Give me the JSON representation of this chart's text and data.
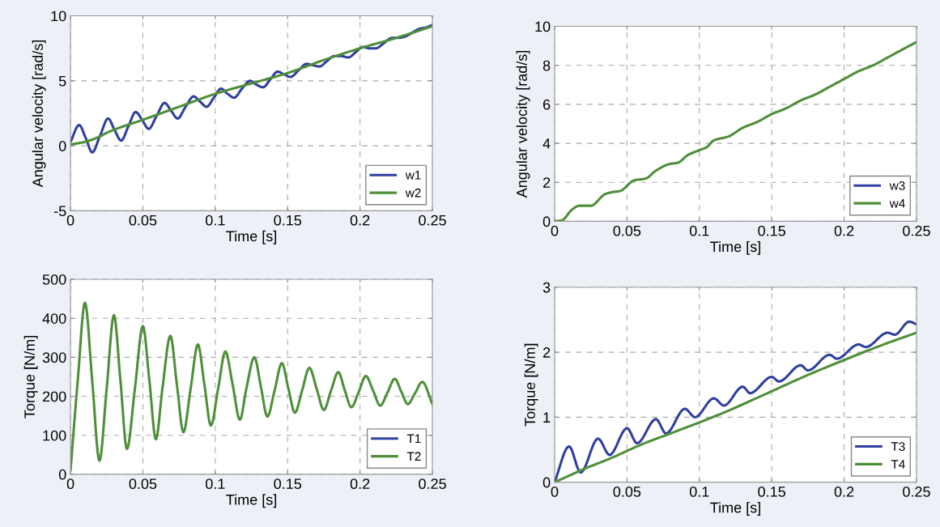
{
  "chart_data": [
    {
      "type": "line",
      "xlabel": "Time [s]",
      "ylabel": "Angular velocity [rad/s]",
      "xlim": [
        0,
        0.25
      ],
      "ylim": [
        -5,
        10
      ],
      "xticks": [
        0,
        0.05,
        0.1,
        0.15,
        0.2,
        0.25
      ],
      "yticks": [
        -5,
        0,
        5,
        10
      ],
      "grid": true,
      "legend": "bottom right",
      "series": [
        {
          "name": "w1",
          "color": "#2f3f9f",
          "x": [
            0,
            0.006,
            0.0105,
            0.015,
            0.0205,
            0.026,
            0.0305,
            0.035,
            0.04,
            0.045,
            0.0495,
            0.054,
            0.0595,
            0.065,
            0.0695,
            0.074,
            0.0795,
            0.085,
            0.0895,
            0.094,
            0.099,
            0.104,
            0.1085,
            0.113,
            0.1185,
            0.124,
            0.1285,
            0.133,
            0.138,
            0.143,
            0.1475,
            0.152,
            0.1575,
            0.163,
            0.1675,
            0.172,
            0.177,
            0.182,
            0.187,
            0.192,
            0.197,
            0.202,
            0.2065,
            0.211,
            0.2165,
            0.222,
            0.2265,
            0.231,
            0.236,
            0.241,
            0.2455,
            0.25
          ],
          "values": [
            0.3,
            1.6,
            0.6,
            -0.5,
            0.8,
            2.1,
            1.2,
            0.4,
            1.5,
            2.6,
            2.0,
            1.3,
            2.3,
            3.3,
            2.7,
            2.1,
            3.0,
            3.8,
            3.4,
            3.0,
            3.7,
            4.4,
            4.0,
            3.7,
            4.4,
            5.0,
            4.7,
            4.5,
            5.1,
            5.7,
            5.5,
            5.3,
            5.8,
            6.3,
            6.2,
            6.1,
            6.5,
            6.9,
            6.9,
            6.8,
            7.2,
            7.6,
            7.5,
            7.5,
            7.9,
            8.3,
            8.3,
            8.4,
            8.7,
            9.0,
            9.1,
            9.3
          ]
        },
        {
          "name": "w2",
          "color": "#4e8f3a",
          "x": [
            0,
            0.01,
            0.02,
            0.025,
            0.05,
            0.075,
            0.1,
            0.125,
            0.15,
            0.175,
            0.2,
            0.225,
            0.25
          ],
          "values": [
            0.1,
            0.3,
            0.7,
            1.0,
            2.0,
            3.0,
            4.0,
            4.8,
            5.6,
            6.6,
            7.5,
            8.3,
            9.2
          ]
        }
      ]
    },
    {
      "type": "line",
      "xlabel": "Time [s]",
      "ylabel": "Angular velocity [rad/s]",
      "xlim": [
        0,
        0.25
      ],
      "ylim": [
        0,
        10
      ],
      "xticks": [
        0,
        0.05,
        0.1,
        0.15,
        0.2,
        0.25
      ],
      "yticks": [
        0,
        2,
        4,
        6,
        8,
        10
      ],
      "grid": true,
      "legend": "bottom right",
      "series": [
        {
          "name": "w3",
          "color": "#2f3f9f"
        },
        {
          "name": "w4",
          "color": "#4e8f3a",
          "x": [
            0,
            0.005,
            0.012,
            0.017,
            0.025,
            0.035,
            0.04,
            0.045,
            0.055,
            0.063,
            0.07,
            0.08,
            0.085,
            0.092,
            0.1,
            0.105,
            0.11,
            0.12,
            0.13,
            0.14,
            0.15,
            0.16,
            0.17,
            0.18,
            0.19,
            0.2,
            0.21,
            0.22,
            0.23,
            0.24,
            0.25
          ],
          "values": [
            0,
            0.05,
            0.6,
            0.8,
            0.8,
            1.4,
            1.5,
            1.55,
            2.1,
            2.2,
            2.6,
            2.95,
            3.0,
            3.4,
            3.65,
            3.8,
            4.15,
            4.35,
            4.8,
            5.1,
            5.5,
            5.8,
            6.2,
            6.5,
            6.9,
            7.3,
            7.7,
            8.0,
            8.4,
            8.8,
            9.2
          ]
        }
      ]
    },
    {
      "type": "line",
      "xlabel": "Time [s]",
      "ylabel": "Torque [N/m]",
      "xlim": [
        0,
        0.25
      ],
      "ylim": [
        0,
        500
      ],
      "xticks": [
        0,
        0.05,
        0.1,
        0.15,
        0.2,
        0.25
      ],
      "yticks": [
        0,
        100,
        200,
        300,
        400,
        500
      ],
      "grid": true,
      "legend": "bottom right",
      "series": [
        {
          "name": "T1",
          "color": "#2f3f9f"
        },
        {
          "name": "T2",
          "color": "#4e8f3a",
          "x": [
            0,
            0.005,
            0.01,
            0.015,
            0.02,
            0.025,
            0.03,
            0.0345,
            0.039,
            0.0445,
            0.05,
            0.0545,
            0.059,
            0.0635,
            0.069,
            0.0735,
            0.078,
            0.083,
            0.088,
            0.0925,
            0.097,
            0.102,
            0.107,
            0.112,
            0.117,
            0.1215,
            0.127,
            0.1315,
            0.136,
            0.141,
            0.146,
            0.1505,
            0.155,
            0.16,
            0.165,
            0.17,
            0.175,
            0.18,
            0.185,
            0.1895,
            0.194,
            0.199,
            0.204,
            0.209,
            0.214,
            0.219,
            0.224,
            0.2285,
            0.233,
            0.238,
            0.243,
            0.25
          ],
          "values": [
            10,
            240,
            440,
            240,
            35,
            220,
            408,
            240,
            65,
            220,
            380,
            240,
            90,
            220,
            355,
            230,
            108,
            220,
            333,
            230,
            125,
            220,
            315,
            230,
            140,
            220,
            300,
            225,
            148,
            215,
            285,
            220,
            158,
            215,
            273,
            220,
            165,
            215,
            262,
            215,
            172,
            210,
            252,
            215,
            176,
            210,
            245,
            212,
            180,
            208,
            237,
            180
          ]
        }
      ]
    },
    {
      "type": "line",
      "xlabel": "Time [s]",
      "ylabel": "Torque [N/m]",
      "xlim": [
        0,
        0.25
      ],
      "ylim": [
        0,
        3
      ],
      "xticks": [
        0,
        0.05,
        0.1,
        0.15,
        0.2,
        0.25
      ],
      "yticks": [
        0,
        1,
        2,
        3
      ],
      "grid": true,
      "legend": "bottom right",
      "series": [
        {
          "name": "T3",
          "color": "#2f3f9f",
          "x": [
            0,
            0.01,
            0.018,
            0.03,
            0.038,
            0.05,
            0.057,
            0.07,
            0.077,
            0.09,
            0.097,
            0.11,
            0.117,
            0.13,
            0.135,
            0.15,
            0.155,
            0.17,
            0.175,
            0.19,
            0.195,
            0.21,
            0.215,
            0.23,
            0.235,
            0.245,
            0.25
          ],
          "values": [
            0,
            0.55,
            0.15,
            0.67,
            0.42,
            0.83,
            0.6,
            0.97,
            0.75,
            1.13,
            1.0,
            1.29,
            1.18,
            1.47,
            1.37,
            1.62,
            1.55,
            1.8,
            1.72,
            1.96,
            1.9,
            2.12,
            2.08,
            2.3,
            2.27,
            2.47,
            2.43
          ]
        },
        {
          "name": "T4",
          "color": "#4e8f3a",
          "x": [
            0,
            0.01,
            0.02,
            0.04,
            0.06,
            0.08,
            0.1,
            0.12,
            0.15,
            0.175,
            0.2,
            0.225,
            0.25
          ],
          "values": [
            0,
            0.1,
            0.2,
            0.38,
            0.58,
            0.75,
            0.92,
            1.1,
            1.4,
            1.65,
            1.88,
            2.1,
            2.3
          ]
        }
      ]
    }
  ]
}
